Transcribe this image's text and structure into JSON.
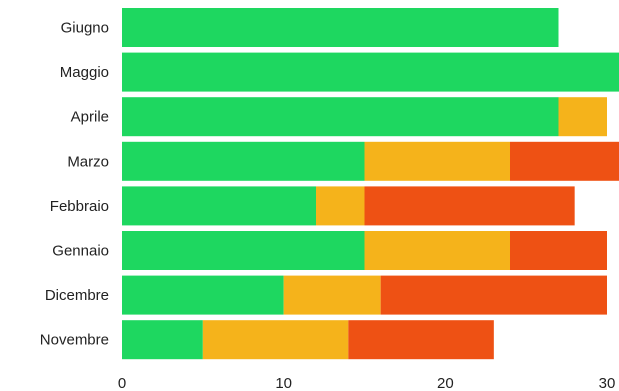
{
  "chart_data": {
    "type": "bar",
    "orientation": "horizontal",
    "stacked": true,
    "categories": [
      "Giugno",
      "Maggio",
      "Aprile",
      "Marzo",
      "Febbraio",
      "Gennaio",
      "Dicembre",
      "Novembre"
    ],
    "series": [
      {
        "color": "#1ed760",
        "values": [
          27,
          31,
          27,
          15,
          12,
          15,
          10,
          5
        ]
      },
      {
        "color": "#f5b31b",
        "values": [
          0,
          0,
          3,
          9,
          3,
          9,
          6,
          9
        ]
      },
      {
        "color": "#ee5114",
        "values": [
          0,
          0,
          0,
          7,
          13,
          6,
          14,
          9
        ]
      }
    ],
    "xticks": [
      "0",
      "10",
      "20",
      "30"
    ],
    "xlim": [
      0,
      30
    ],
    "title": "",
    "xlabel": "",
    "ylabel": "",
    "grid": false,
    "legend": "none"
  }
}
